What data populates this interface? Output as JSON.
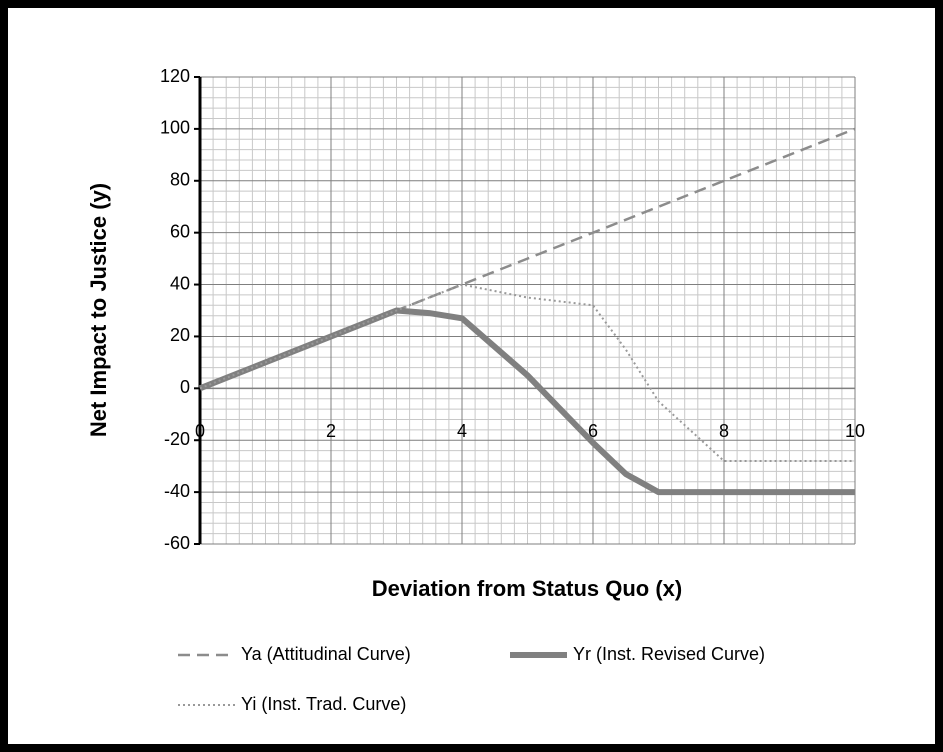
{
  "chart_data": {
    "type": "line",
    "xlabel": "Deviation from Status Quo (x)",
    "ylabel": "Net Impact to Justice (y)",
    "xlim": [
      0,
      10
    ],
    "xticks": [
      0,
      2,
      4,
      6,
      8,
      10
    ],
    "ylim": [
      -60,
      120
    ],
    "yticks": [
      -60,
      -40,
      -20,
      0,
      20,
      40,
      60,
      80,
      100,
      120
    ],
    "grid": true,
    "minor_grid": true,
    "legend": "bottom",
    "series": [
      {
        "name": "Ya (Attitudinal Curve)",
        "color": "#8c8c8c",
        "style": "dashed",
        "x": [
          0,
          1,
          2,
          3,
          4,
          5,
          6,
          7,
          8,
          9,
          10
        ],
        "values": [
          0,
          10,
          20,
          30,
          40,
          50,
          60,
          70,
          80,
          90,
          100
        ]
      },
      {
        "name": "Yr (Inst. Revised Curve)",
        "color": "#808080",
        "style": "thick",
        "x": [
          0,
          1,
          2,
          3,
          3.5,
          4,
          5,
          6,
          6.5,
          7,
          8,
          9,
          10
        ],
        "values": [
          0,
          10,
          20,
          30,
          29,
          27,
          5,
          -21,
          -33,
          -40,
          -40,
          -40,
          -40
        ]
      },
      {
        "name": "Yi (Inst. Trad. Curve)",
        "color": "#999999",
        "style": "dotted",
        "x": [
          0,
          1,
          2,
          3,
          4,
          5,
          6,
          6.5,
          7,
          8,
          9,
          10
        ],
        "values": [
          0,
          10,
          20,
          30,
          40,
          35,
          32,
          15,
          -5,
          -28,
          -28,
          -28
        ]
      }
    ]
  }
}
